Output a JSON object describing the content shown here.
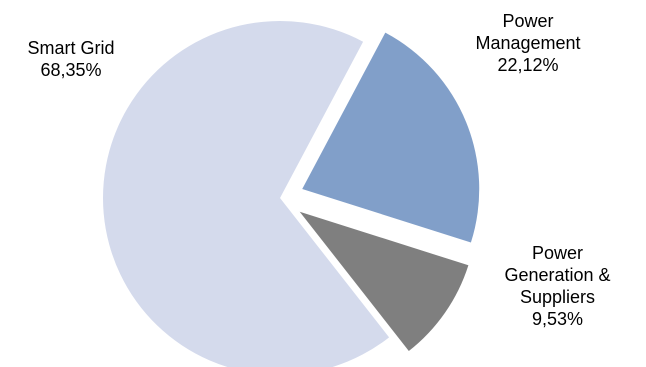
{
  "chart_data": {
    "type": "pie",
    "title": "",
    "exploded": true,
    "slices": [
      {
        "name": "Smart Grid",
        "value": 68.35,
        "value_label": "68,35%",
        "color": "#D4DAEC"
      },
      {
        "name": "Power Management",
        "value": 22.12,
        "value_label": "22,12%",
        "color": "#819FC9"
      },
      {
        "name": "Power Generation & Suppliers",
        "value": 9.53,
        "value_label": "9,53%",
        "color": "#7F7F7F"
      }
    ]
  },
  "labels": {
    "smart_grid": {
      "line1": "Smart Grid",
      "value": "68,35%"
    },
    "power_management": {
      "line1": "Power",
      "line2": "Management",
      "value": "22,12%"
    },
    "power_generation": {
      "line1": "Power",
      "line2": "Generation &",
      "line3": "Suppliers",
      "value": "9,53%"
    }
  }
}
